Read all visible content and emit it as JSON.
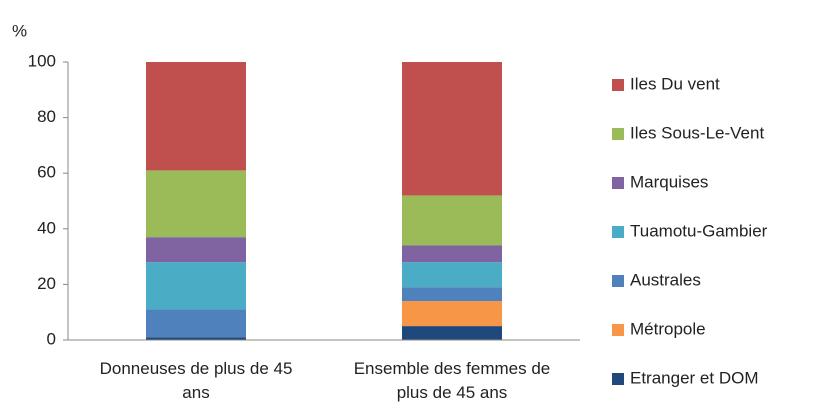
{
  "chart_data": {
    "type": "stacked_bar",
    "ylabel": "%",
    "categories": [
      "Donneuses de plus de 45 ans",
      "Ensemble des femmes de plus de 45 ans"
    ],
    "series": [
      {
        "name": "Etranger et DOM",
        "color": "#1f497d",
        "values": [
          1,
          5
        ]
      },
      {
        "name": "Métropole",
        "color": "#f79646",
        "values": [
          0,
          9
        ]
      },
      {
        "name": "Australes",
        "color": "#4f81bd",
        "values": [
          10,
          5
        ]
      },
      {
        "name": "Tuamotu-Gambier",
        "color": "#4bacc6",
        "values": [
          17,
          9
        ]
      },
      {
        "name": "Marquises",
        "color": "#8064a2",
        "values": [
          9,
          6
        ]
      },
      {
        "name": "Iles Sous-Le-Vent",
        "color": "#9bbb59",
        "values": [
          24,
          18
        ]
      },
      {
        "name": "Iles Du vent",
        "color": "#c0504d",
        "values": [
          39,
          48
        ]
      }
    ],
    "ylim": [
      0,
      100
    ],
    "yticks": [
      0,
      20,
      40,
      60,
      80,
      100
    ],
    "legend": "right"
  }
}
